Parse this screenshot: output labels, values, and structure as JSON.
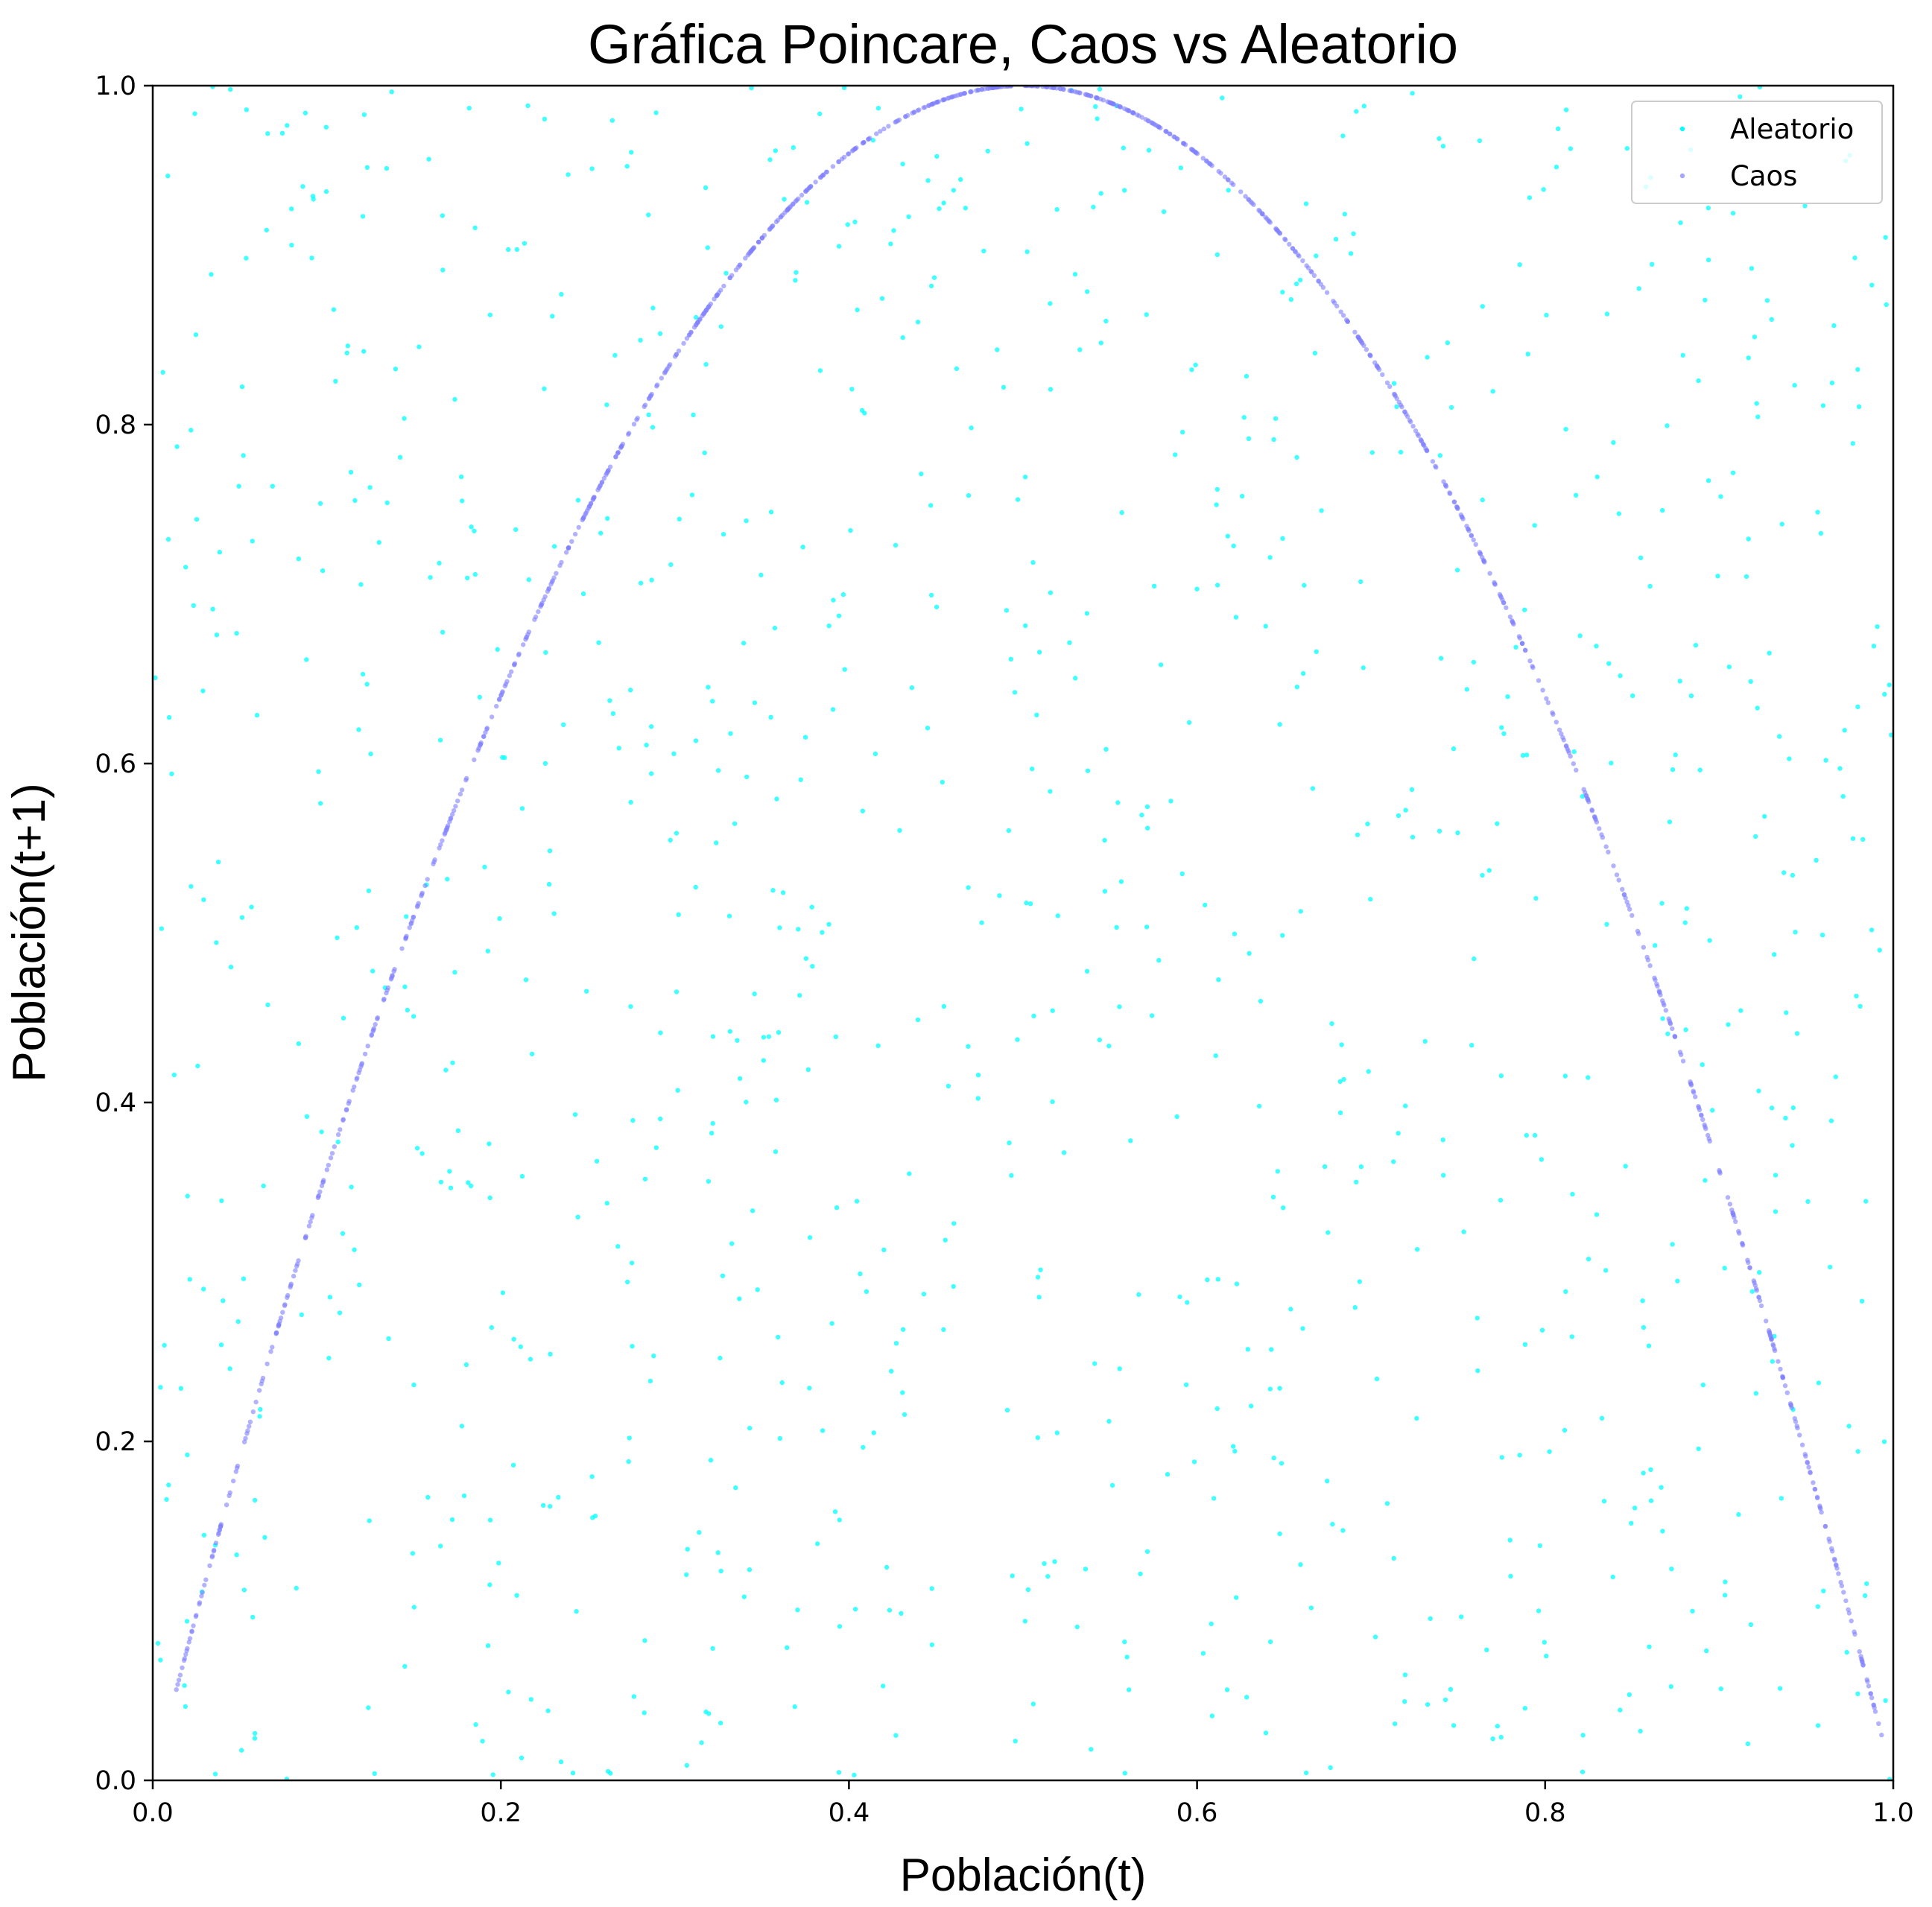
{
  "chart_data": {
    "type": "scatter",
    "title": "Gráfica Poincare, Caos vs Aleatorio",
    "xlabel": "Población(t)",
    "ylabel": "Población(t+1)",
    "xlim": [
      0,
      1
    ],
    "ylim": [
      0,
      1
    ],
    "xticks": [
      "0.0",
      "0.2",
      "0.4",
      "0.6",
      "0.8",
      "1.0"
    ],
    "yticks": [
      "0.0",
      "0.2",
      "0.4",
      "0.6",
      "0.8",
      "1.0"
    ],
    "grid": false,
    "legend_position": "top-right",
    "series": [
      {
        "name": "Aleatorio",
        "color": "#00ffff",
        "distribution": "uniform",
        "count": 1000,
        "x_range": [
          0,
          1
        ],
        "y_range": [
          0,
          1
        ]
      },
      {
        "name": "Caos",
        "color": "#7f7fff",
        "relation": "y = 4 * x * (1 - x)",
        "count": 1000,
        "x_range": [
          0.01,
          0.998
        ]
      }
    ]
  }
}
